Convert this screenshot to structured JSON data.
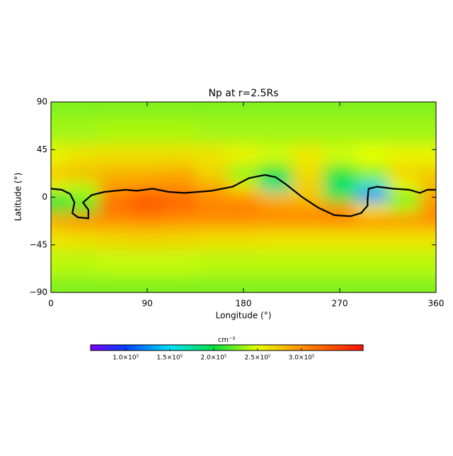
{
  "chart_data": {
    "type": "heatmap",
    "title": "Np at r=2.5Rs",
    "xlabel": "Longitude (°)",
    "ylabel": "Latitude (°)",
    "xlim": [
      0,
      360
    ],
    "ylim": [
      -90,
      90
    ],
    "xticks": [
      0,
      90,
      180,
      270,
      360
    ],
    "yticks": [
      {
        "value": -90,
        "label": "−90"
      },
      {
        "value": -45,
        "label": "−45"
      },
      0,
      45,
      90
    ],
    "field": {
      "lon": [
        0,
        30,
        60,
        90,
        120,
        150,
        180,
        210,
        240,
        270,
        300,
        330,
        360
      ],
      "lat": [
        90,
        60,
        40,
        20,
        10,
        0,
        -10,
        -20,
        -40,
        -60,
        -90
      ],
      "values": [
        [
          228000,
          228000,
          228000,
          228000,
          228000,
          228000,
          228000,
          228000,
          228000,
          228000,
          228000,
          228000,
          228000
        ],
        [
          235000,
          235000,
          237000,
          237000,
          237000,
          235000,
          235000,
          235000,
          235000,
          235000,
          235000,
          235000,
          235000
        ],
        [
          255000,
          262000,
          265000,
          265000,
          265000,
          262000,
          255000,
          245000,
          260000,
          245000,
          250000,
          255000,
          255000
        ],
        [
          275000,
          280000,
          285000,
          285000,
          290000,
          270000,
          230000,
          200000,
          265000,
          205000,
          230000,
          270000,
          275000
        ],
        [
          250000,
          240000,
          295000,
          300000,
          300000,
          290000,
          260000,
          175000,
          275000,
          185000,
          160000,
          250000,
          280000
        ],
        [
          200000,
          230000,
          310000,
          330000,
          320000,
          300000,
          300000,
          280000,
          270000,
          210000,
          110000,
          220000,
          290000
        ],
        [
          210000,
          210000,
          320000,
          330000,
          320000,
          310000,
          310000,
          300000,
          300000,
          300000,
          250000,
          240000,
          300000
        ],
        [
          290000,
          300000,
          300000,
          305000,
          300000,
          300000,
          300000,
          300000,
          300000,
          305000,
          300000,
          300000,
          300000
        ],
        [
          262000,
          265000,
          268000,
          270000,
          268000,
          265000,
          265000,
          262000,
          262000,
          262000,
          262000,
          262000,
          262000
        ],
        [
          240000,
          240000,
          242000,
          242000,
          242000,
          240000,
          240000,
          240000,
          240000,
          240000,
          240000,
          240000,
          240000
        ],
        [
          228000,
          228000,
          228000,
          228000,
          228000,
          228000,
          228000,
          228000,
          228000,
          228000,
          228000,
          228000,
          228000
        ]
      ]
    },
    "contour": {
      "color": "#000000",
      "x": [
        0,
        10,
        18,
        22,
        20,
        25,
        35,
        35,
        30,
        38,
        50,
        70,
        80,
        95,
        110,
        125,
        150,
        170,
        185,
        200,
        210,
        220,
        235,
        250,
        265,
        280,
        290,
        296,
        296,
        297,
        305,
        320,
        335,
        345,
        352,
        360
      ],
      "y": [
        8,
        7,
        3,
        -5,
        -15,
        -19,
        -20,
        -12,
        -5,
        2,
        5,
        7,
        6,
        8,
        5,
        4,
        6,
        10,
        18,
        21,
        19,
        12,
        0,
        -10,
        -17,
        -18,
        -15,
        -8,
        -2,
        8,
        10,
        8,
        7,
        4,
        7,
        7
      ]
    },
    "colorbar": {
      "label": "cm⁻³",
      "lim": [
        60000,
        370000
      ],
      "ticks": [
        {
          "value": 100000,
          "label": "1.0×10⁵"
        },
        {
          "value": 150000,
          "label": "1.5×10⁵"
        },
        {
          "value": 200000,
          "label": "2.0×10⁵"
        },
        {
          "value": 250000,
          "label": "2.5×10⁵"
        },
        {
          "value": 300000,
          "label": "3.0×10⁵"
        }
      ],
      "stops": [
        {
          "value": 60000,
          "color": "#8000ff"
        },
        {
          "value": 100000,
          "color": "#0040ff"
        },
        {
          "value": 150000,
          "color": "#00e0ff"
        },
        {
          "value": 200000,
          "color": "#00e040"
        },
        {
          "value": 250000,
          "color": "#e8ff00"
        },
        {
          "value": 300000,
          "color": "#ff9000"
        },
        {
          "value": 370000,
          "color": "#ff1000"
        }
      ]
    }
  }
}
